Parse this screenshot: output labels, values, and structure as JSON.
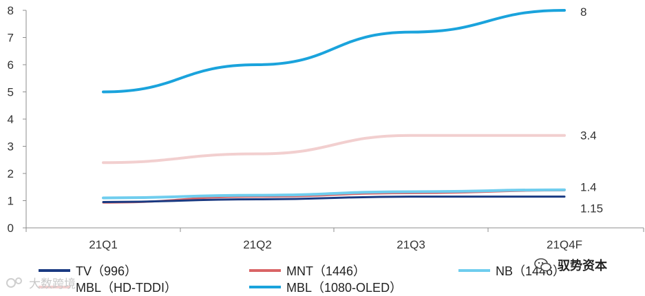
{
  "chart_data": {
    "type": "line",
    "categories": [
      "21Q1",
      "21Q2",
      "21Q3",
      "21Q4F"
    ],
    "ylim": [
      0,
      8
    ],
    "yticks": [
      0,
      1,
      2,
      3,
      4,
      5,
      6,
      7,
      8
    ],
    "grid": false,
    "legend_position": "bottom",
    "series": [
      {
        "name": "MBL（HD-TDDI）",
        "values": [
          2.4,
          2.72,
          3.4,
          3.4
        ],
        "color": "#f2cfcf",
        "end_label": "3.4"
      },
      {
        "name": "MNT（1446）",
        "values": [
          0.93,
          1.15,
          1.28,
          1.38
        ],
        "color": "#d96466",
        "end_label": ""
      },
      {
        "name": "NB（1446）",
        "values": [
          1.1,
          1.2,
          1.33,
          1.4
        ],
        "color": "#6fcdee",
        "end_label": "1.4"
      },
      {
        "name": "TV（996）",
        "values": [
          0.95,
          1.05,
          1.15,
          1.15
        ],
        "color": "#1a3a82",
        "end_label": "1.15"
      },
      {
        "name": "MBL（1080-OLED）",
        "values": [
          5.0,
          6.0,
          7.2,
          8.0
        ],
        "color": "#1aa3dc",
        "end_label": "8"
      }
    ]
  },
  "legend": {
    "items": [
      {
        "label": "TV（996）",
        "color": "#1a3a82"
      },
      {
        "label": "MNT（1446）",
        "color": "#d96466"
      },
      {
        "label": "NB（1446）",
        "color": "#6fcdee"
      },
      {
        "label": "MBL（HD-TDDI）",
        "color": "#f2cfcf"
      },
      {
        "label": "MBL（1080-OLED）",
        "color": "#1aa3dc"
      }
    ]
  },
  "watermarks": {
    "left_text": "大数跨境",
    "right_text": "驭势资本"
  }
}
